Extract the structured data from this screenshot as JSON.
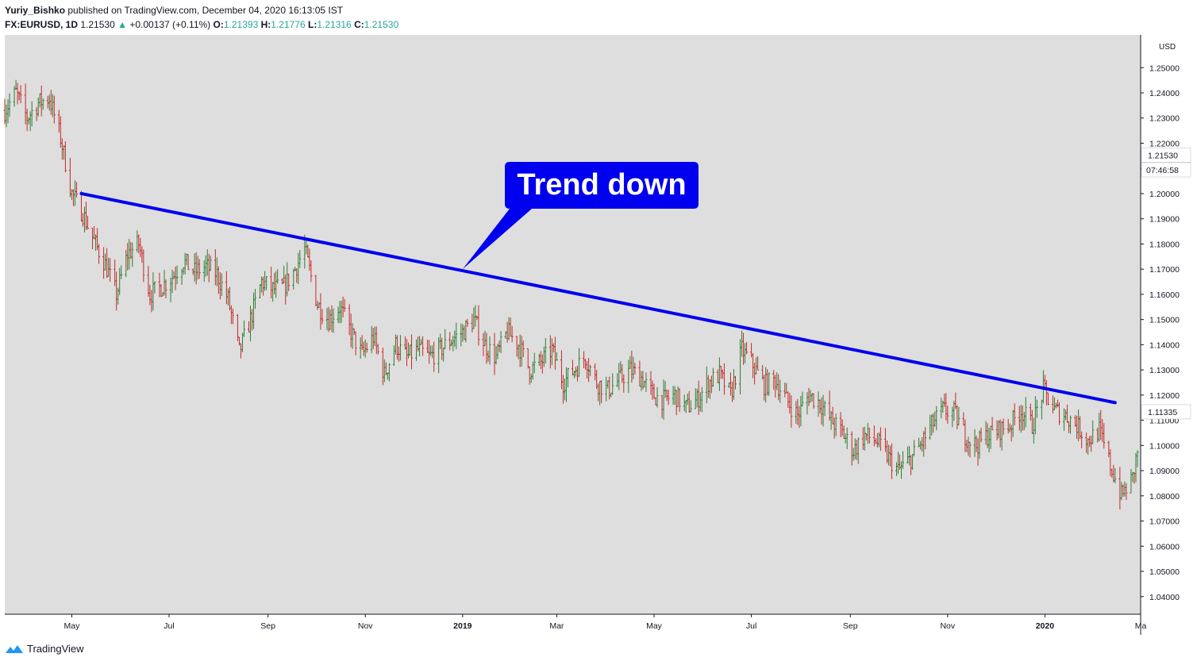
{
  "header": {
    "author": "Yuriy_Bishko",
    "published": "published on TradingView.com, December 04, 2020 16:13:05 IST",
    "symbol": "FX:EURUSD, 1D",
    "last": "1.21530",
    "change": "+0.00137 (+0.11%)",
    "o_label": "O:",
    "o_value": "1.21393",
    "h_label": "H:",
    "h_value": "1.21776",
    "l_label": "L:",
    "l_value": "1.21316",
    "c_label": "C:",
    "c_value": "1.21530"
  },
  "colors": {
    "background": "#dedede",
    "up": "#26a69a",
    "bar_up": "#2e7d32",
    "bar_down": "#c62828",
    "trendline": "#0000ee",
    "callout": "#0000ee"
  },
  "annotation": {
    "text": "Trend down"
  },
  "price_scale": {
    "currency": "USD",
    "current_price": "1.21530",
    "countdown": "07:46:58",
    "marker": "1.11335"
  },
  "footer": {
    "brand": "TradingView"
  },
  "chart_data": {
    "type": "ohlc",
    "symbol": "FX:EURUSD",
    "interval": "1D",
    "ylim": [
      1.033,
      1.263
    ],
    "y_ticks": [
      1.04,
      1.05,
      1.06,
      1.07,
      1.08,
      1.09,
      1.1,
      1.11,
      1.12,
      1.13,
      1.14,
      1.15,
      1.16,
      1.17,
      1.18,
      1.19,
      1.2,
      1.21,
      1.22,
      1.23,
      1.24,
      1.25
    ],
    "y_tick_labels": [
      "1.04000",
      "1.05000",
      "1.06000",
      "1.07000",
      "1.08000",
      "1.09000",
      "1.10000",
      "1.11000",
      "1.12000",
      "1.13000",
      "1.14000",
      "1.15000",
      "1.16000",
      "1.17000",
      "1.18000",
      "1.19000",
      "1.20000",
      "1.21000",
      "1.22000",
      "1.23000",
      "1.24000",
      "1.25000"
    ],
    "x_range": [
      "2018-03-20",
      "2020-03-01"
    ],
    "x_ticks": [
      {
        "date": "2018-05-01",
        "label": "May",
        "bold": false
      },
      {
        "date": "2018-07-01",
        "label": "Jul",
        "bold": false
      },
      {
        "date": "2018-09-01",
        "label": "Sep",
        "bold": false
      },
      {
        "date": "2018-11-01",
        "label": "Nov",
        "bold": false
      },
      {
        "date": "2019-01-01",
        "label": "2019",
        "bold": true
      },
      {
        "date": "2019-03-01",
        "label": "Mar",
        "bold": false
      },
      {
        "date": "2019-05-01",
        "label": "May",
        "bold": false
      },
      {
        "date": "2019-07-01",
        "label": "Jul",
        "bold": false
      },
      {
        "date": "2019-09-01",
        "label": "Sep",
        "bold": false
      },
      {
        "date": "2019-11-01",
        "label": "Nov",
        "bold": false
      },
      {
        "date": "2020-01-01",
        "label": "2020",
        "bold": true
      },
      {
        "date": "2020-03-01",
        "label": "Ma",
        "bold": false
      }
    ],
    "price_path": [
      [
        "2018-03-20",
        1.233
      ],
      [
        "2018-03-27",
        1.24
      ],
      [
        "2018-04-03",
        1.23
      ],
      [
        "2018-04-10",
        1.236
      ],
      [
        "2018-04-17",
        1.238
      ],
      [
        "2018-04-24",
        1.222
      ],
      [
        "2018-05-01",
        1.2
      ],
      [
        "2018-05-08",
        1.192
      ],
      [
        "2018-05-15",
        1.181
      ],
      [
        "2018-05-22",
        1.172
      ],
      [
        "2018-05-29",
        1.16
      ],
      [
        "2018-06-05",
        1.176
      ],
      [
        "2018-06-12",
        1.18
      ],
      [
        "2018-06-19",
        1.16
      ],
      [
        "2018-06-26",
        1.163
      ],
      [
        "2018-07-03",
        1.167
      ],
      [
        "2018-07-10",
        1.173
      ],
      [
        "2018-07-17",
        1.169
      ],
      [
        "2018-07-24",
        1.171
      ],
      [
        "2018-07-31",
        1.168
      ],
      [
        "2018-08-07",
        1.158
      ],
      [
        "2018-08-14",
        1.137
      ],
      [
        "2018-08-21",
        1.15
      ],
      [
        "2018-08-28",
        1.165
      ],
      [
        "2018-09-04",
        1.162
      ],
      [
        "2018-09-11",
        1.163
      ],
      [
        "2018-09-18",
        1.17
      ],
      [
        "2018-09-24",
        1.178
      ],
      [
        "2018-10-02",
        1.156
      ],
      [
        "2018-10-09",
        1.15
      ],
      [
        "2018-10-16",
        1.155
      ],
      [
        "2018-10-23",
        1.145
      ],
      [
        "2018-10-30",
        1.136
      ],
      [
        "2018-11-06",
        1.143
      ],
      [
        "2018-11-13",
        1.128
      ],
      [
        "2018-11-20",
        1.14
      ],
      [
        "2018-11-27",
        1.135
      ],
      [
        "2018-12-04",
        1.138
      ],
      [
        "2018-12-11",
        1.135
      ],
      [
        "2018-12-18",
        1.138
      ],
      [
        "2018-12-25",
        1.142
      ],
      [
        "2019-01-01",
        1.145
      ],
      [
        "2019-01-08",
        1.15
      ],
      [
        "2019-01-15",
        1.14
      ],
      [
        "2019-01-22",
        1.135
      ],
      [
        "2019-01-29",
        1.145
      ],
      [
        "2019-02-05",
        1.14
      ],
      [
        "2019-02-12",
        1.13
      ],
      [
        "2019-02-19",
        1.133
      ],
      [
        "2019-02-26",
        1.138
      ],
      [
        "2019-03-05",
        1.125
      ],
      [
        "2019-03-12",
        1.13
      ],
      [
        "2019-03-19",
        1.135
      ],
      [
        "2019-03-26",
        1.125
      ],
      [
        "2019-04-02",
        1.122
      ],
      [
        "2019-04-09",
        1.126
      ],
      [
        "2019-04-16",
        1.13
      ],
      [
        "2019-04-23",
        1.127
      ],
      [
        "2019-04-30",
        1.12
      ],
      [
        "2019-05-07",
        1.118
      ],
      [
        "2019-05-14",
        1.12
      ],
      [
        "2019-05-21",
        1.115
      ],
      [
        "2019-05-28",
        1.118
      ],
      [
        "2019-06-04",
        1.125
      ],
      [
        "2019-06-11",
        1.128
      ],
      [
        "2019-06-18",
        1.12
      ],
      [
        "2019-06-25",
        1.138
      ],
      [
        "2019-07-02",
        1.132
      ],
      [
        "2019-07-09",
        1.124
      ],
      [
        "2019-07-16",
        1.126
      ],
      [
        "2019-07-23",
        1.118
      ],
      [
        "2019-07-30",
        1.112
      ],
      [
        "2019-08-06",
        1.12
      ],
      [
        "2019-08-13",
        1.117
      ],
      [
        "2019-08-20",
        1.11
      ],
      [
        "2019-08-27",
        1.105
      ],
      [
        "2019-09-03",
        1.098
      ],
      [
        "2019-09-10",
        1.104
      ],
      [
        "2019-09-17",
        1.102
      ],
      [
        "2019-09-24",
        1.096
      ],
      [
        "2019-10-01",
        1.09
      ],
      [
        "2019-10-08",
        1.094
      ],
      [
        "2019-10-15",
        1.1
      ],
      [
        "2019-10-22",
        1.108
      ],
      [
        "2019-10-29",
        1.114
      ],
      [
        "2019-11-05",
        1.113
      ],
      [
        "2019-11-12",
        1.104
      ],
      [
        "2019-11-19",
        1.1
      ],
      [
        "2019-11-26",
        1.104
      ],
      [
        "2019-12-03",
        1.106
      ],
      [
        "2019-12-10",
        1.108
      ],
      [
        "2019-12-17",
        1.114
      ],
      [
        "2019-12-24",
        1.108
      ],
      [
        "2019-12-31",
        1.122
      ],
      [
        "2020-01-07",
        1.114
      ],
      [
        "2020-01-14",
        1.112
      ],
      [
        "2020-01-21",
        1.108
      ],
      [
        "2020-01-28",
        1.102
      ],
      [
        "2020-02-04",
        1.106
      ],
      [
        "2020-02-11",
        1.092
      ],
      [
        "2020-02-18",
        1.08
      ],
      [
        "2020-02-25",
        1.087
      ],
      [
        "2020-03-01",
        1.105
      ]
    ],
    "trendline": {
      "start": [
        "2018-05-07",
        1.2
      ],
      "end": [
        "2020-02-14",
        1.117
      ]
    },
    "callout_pointer": [
      "2019-01-01",
      1.17
    ]
  }
}
